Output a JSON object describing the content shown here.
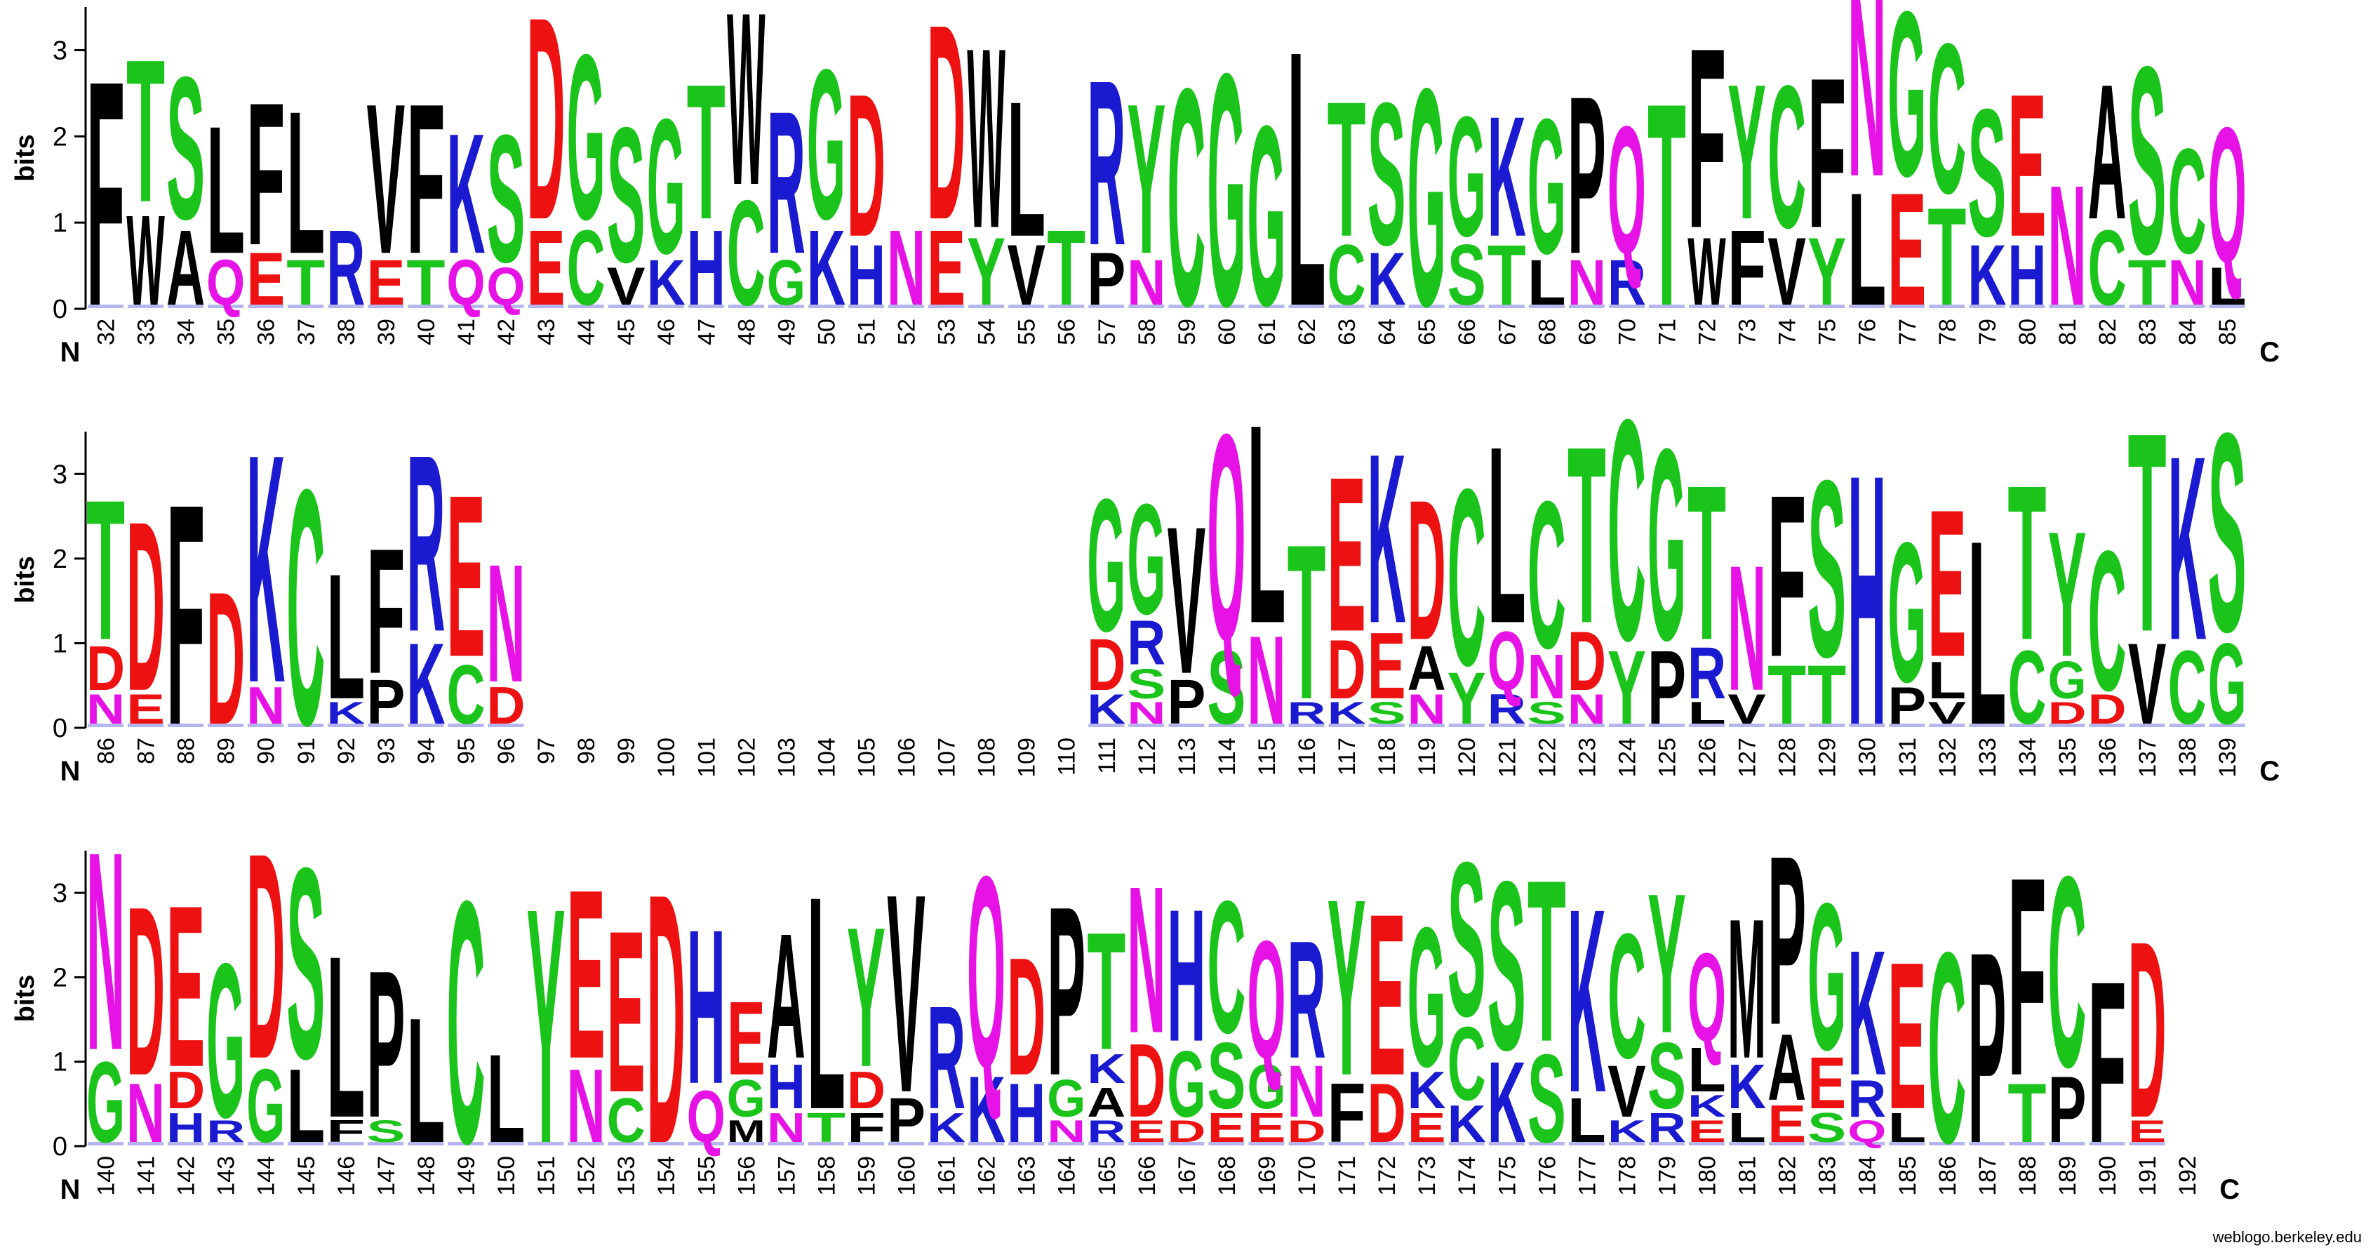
{
  "ylabel": "bits",
  "n_label": "N",
  "c_label": "C",
  "credit": "weblogo.berkeley.edu",
  "y_ticks": [
    "0",
    "1",
    "2",
    "3"
  ],
  "y_max": 3.5,
  "colors": {
    "hydrophobic": "#000000",
    "polar": "#1bc41b",
    "basic": "#1a1ad0",
    "acidic": "#ee1111",
    "amide": "#e612e6"
  },
  "rows": [
    {
      "start": 32,
      "end": 85,
      "columns": {
        "32": "F",
        "33": "TW",
        "34": "SA",
        "35": "LQ",
        "36": "FE",
        "37": "LT",
        "38": "R",
        "39": "VE",
        "40": "FT",
        "41": "KQ",
        "42": "SQ",
        "43": "DE",
        "44": "GC",
        "45": "SV",
        "46": "GK",
        "47": "TH",
        "48": "WC",
        "49": "RG",
        "50": "GK",
        "51": "DH",
        "52": "N",
        "53": "DE",
        "54": "WY",
        "55": "LV",
        "56": "T",
        "57": "RP",
        "58": "YN",
        "59": "C",
        "60": "G",
        "61": "G",
        "62": "L",
        "63": "TC",
        "64": "SK",
        "65": "G",
        "66": "GS",
        "67": "KT",
        "68": "GL",
        "69": "PN",
        "70": "QR",
        "71": "T",
        "72": "FW",
        "73": "YF",
        "74": "CV",
        "75": "FY",
        "76": "NL",
        "77": "GE",
        "78": "CT",
        "79": "SK",
        "80": "EH",
        "81": "N",
        "82": "AC",
        "83": "ST",
        "84": "CN",
        "85": "QL"
      }
    },
    {
      "start": 86,
      "end": 139,
      "columns": {
        "86": "TDN",
        "87": "DE",
        "88": "F",
        "89": "D",
        "90": "KN",
        "91": "C",
        "92": "LK",
        "93": "FP",
        "94": "RK",
        "95": "EC",
        "96": "ND",
        "111": "GDK",
        "112": "GRSN",
        "113": "VP",
        "114": "QS",
        "115": "LN",
        "116": "TR",
        "117": "EDK",
        "118": "KES",
        "119": "DAN",
        "120": "CY",
        "121": "LQR",
        "122": "CNS",
        "123": "TDN",
        "124": "CY",
        "125": "GP",
        "126": "TRL",
        "127": "NV",
        "128": "FT",
        "129": "ST",
        "130": "H",
        "131": "GP",
        "132": "ELV",
        "133": "L",
        "134": "TC",
        "135": "YGD",
        "136": "CD",
        "137": "TV",
        "138": "KC",
        "139": "SG"
      }
    },
    {
      "start": 140,
      "end": 192,
      "columns": {
        "140": "NG",
        "141": "DN",
        "142": "EDH",
        "143": "GR",
        "144": "DG",
        "145": "SL",
        "146": "LF",
        "147": "PS",
        "148": "L",
        "149": "C",
        "150": "L",
        "151": "Y",
        "152": "EN",
        "153": "EC",
        "154": "D",
        "155": "HQ",
        "156": "EGM",
        "157": "AHN",
        "158": "LT",
        "159": "YDF",
        "160": "VP",
        "161": "RK",
        "162": "QK",
        "163": "DH",
        "164": "PGN",
        "165": "TAKR",
        "166": "NDE",
        "167": "HGD",
        "168": "CSE",
        "169": "QGE",
        "170": "RND",
        "171": "YF",
        "172": "ED",
        "173": "GKE",
        "174": "SCK",
        "175": "SK",
        "176": "TS",
        "177": "KL",
        "178": "CVK",
        "179": "YSR",
        "180": "QLEK",
        "181": "MKL",
        "182": "PAE",
        "183": "GES",
        "184": "KRQ",
        "185": "EL",
        "186": "C",
        "187": "P",
        "188": "FT",
        "189": "CP",
        "190": "F",
        "191": "DE"
      }
    }
  ],
  "_heights": {
    "32": [
      3.0
    ],
    "33": [
      1.9,
      1.2
    ],
    "34": [
      1.9,
      1.0
    ],
    "35": [
      1.7,
      0.6
    ],
    "36": [
      1.9,
      0.7
    ],
    "37": [
      1.9,
      0.6
    ],
    "38": [
      1.0
    ],
    "39": [
      2.0,
      0.6
    ],
    "40": [
      2.0,
      0.6
    ],
    "41": [
      1.6,
      0.6
    ],
    "42": [
      1.7,
      0.5
    ],
    "43": [
      2.7,
      1.0
    ],
    "44": [
      2.2,
      1.0
    ],
    "45": [
      1.8,
      0.5
    ],
    "46": [
      1.8,
      0.6
    ],
    "47": [
      1.8,
      1.0
    ],
    "48": [
      2.3,
      1.4
    ],
    "49": [
      1.9,
      0.6
    ],
    "50": [
      2.0,
      1.0
    ],
    "51": [
      1.9,
      0.8
    ],
    "52": [
      1.0
    ],
    "53": [
      2.6,
      1.0
    ],
    "54": [
      2.4,
      0.9
    ],
    "55": [
      1.8,
      0.8
    ],
    "56": [
      1.0
    ],
    "57": [
      2.2,
      0.7
    ],
    "58": [
      2.0,
      0.6
    ],
    "59": [
      2.9
    ],
    "60": [
      3.1
    ],
    "61": [
      2.4
    ],
    "62": [
      3.4
    ],
    "63": [
      1.8,
      0.8
    ],
    "64": [
      1.9,
      0.7
    ],
    "65": [
      2.9
    ],
    "66": [
      1.6,
      0.8
    ],
    "67": [
      1.6,
      0.8
    ],
    "68": [
      1.8,
      0.6
    ],
    "69": [
      2.1,
      0.6
    ],
    "70": [
      1.7,
      0.6
    ],
    "71": [
      2.7
    ],
    "72": [
      2.4,
      0.9
    ],
    "73": [
      1.8,
      1.0
    ],
    "74": [
      1.9,
      0.9
    ],
    "75": [
      2.0,
      0.9
    ],
    "76": [
      2.4,
      1.5
    ],
    "77": [
      2.2,
      1.5
    ],
    "78": [
      2.0,
      1.3
    ],
    "79": [
      1.7,
      0.8
    ],
    "80": [
      1.9,
      0.8
    ],
    "81": [
      1.6
    ],
    "82": [
      1.8,
      1.0
    ],
    "83": [
      2.5,
      0.6
    ],
    "84": [
      1.4,
      0.6
    ],
    "85": [
      1.8,
      0.5
    ],
    "86": [
      1.9,
      0.6,
      0.4
    ],
    "87": [
      2.3,
      0.4
    ],
    "88": [
      3.0
    ],
    "89": [
      1.8
    ],
    "90": [
      3.1,
      0.5
    ],
    "91": [
      3.2
    ],
    "92": [
      1.7,
      0.3
    ],
    "93": [
      1.7,
      0.6
    ],
    "94": [
      2.4,
      1.1
    ],
    "95": [
      2.2,
      0.8
    ],
    "96": [
      1.6,
      0.5
    ],
    "111": [
      1.8,
      0.7,
      0.4
    ],
    "112": [
      1.5,
      0.6,
      0.4,
      0.3
    ],
    "113": [
      2.0,
      0.6
    ],
    "114": [
      2.8,
      1.0
    ],
    "115": [
      2.7,
      1.2
    ],
    "116": [
      2.1,
      0.3
    ],
    "117": [
      2.1,
      0.8,
      0.3
    ],
    "118": [
      2.3,
      0.9,
      0.3
    ],
    "119": [
      1.9,
      0.6,
      0.4
    ],
    "120": [
      2.4,
      0.7
    ],
    "121": [
      2.4,
      0.8,
      0.4
    ],
    "122": [
      2.0,
      0.6,
      0.3
    ],
    "123": [
      2.4,
      0.8,
      0.4
    ],
    "124": [
      3.0,
      1.0
    ],
    "125": [
      2.6,
      1.0
    ],
    "126": [
      2.1,
      0.7,
      0.3
    ],
    "127": [
      1.7,
      0.4
    ],
    "128": [
      2.2,
      0.8
    ],
    "129": [
      2.4,
      0.8
    ],
    "130": [
      3.4
    ],
    "131": [
      1.9,
      0.5
    ],
    "132": [
      2.0,
      0.5,
      0.3
    ],
    "133": [
      2.5
    ],
    "134": [
      2.1,
      1.0
    ],
    "135": [
      1.7,
      0.5,
      0.3
    ],
    "136": [
      1.9,
      0.4
    ],
    "137": [
      2.7,
      1.1
    ],
    "138": [
      2.5,
      1.0
    ],
    "139": [
      2.7,
      1.1
    ],
    "140": [
      2.7,
      1.1
    ],
    "141": [
      2.3,
      0.8
    ],
    "142": [
      2.2,
      0.5,
      0.4
    ],
    "143": [
      2.1,
      0.3
    ],
    "144": [
      2.8,
      1.0
    ],
    "145": [
      2.6,
      1.0
    ],
    "146": [
      2.2,
      0.3
    ],
    "147": [
      2.0,
      0.3
    ],
    "148": [
      1.7
    ],
    "149": [
      3.3
    ],
    "150": [
      1.2
    ],
    "151": [
      3.2
    ],
    "152": [
      2.3,
      1.0
    ],
    "153": [
      2.2,
      0.6
    ],
    "154": [
      3.4
    ],
    "155": [
      2.1,
      0.7
    ],
    "156": [
      1.0,
      0.5,
      0.3
    ],
    "157": [
      1.7,
      0.6,
      0.4
    ],
    "158": [
      2.9,
      0.4
    ],
    "159": [
      1.9,
      0.5,
      0.4
    ],
    "160": [
      2.7,
      0.6
    ],
    "161": [
      1.4,
      0.4
    ],
    "162": [
      2.6,
      0.9
    ],
    "163": [
      1.6,
      0.8
    ],
    "164": [
      2.3,
      0.5,
      0.3
    ],
    "165": [
      1.6,
      0.4,
      0.4,
      0.3
    ],
    "166": [
      2.0,
      1.0,
      0.3
    ],
    "167": [
      1.8,
      0.9,
      0.3
    ],
    "168": [
      1.8,
      0.9,
      0.4
    ],
    "169": [
      1.6,
      0.6,
      0.4
    ],
    "170": [
      1.6,
      0.7,
      0.3
    ],
    "171": [
      2.4,
      0.8
    ],
    "172": [
      2.2,
      0.8
    ],
    "173": [
      1.9,
      0.5,
      0.4
    ],
    "174": [
      2.1,
      1.0,
      0.5
    ],
    "175": [
      2.3,
      1.1
    ],
    "176": [
      2.2,
      1.2
    ],
    "177": [
      2.5,
      0.6
    ],
    "178": [
      1.7,
      0.7,
      0.3
    ],
    "179": [
      1.9,
      0.9,
      0.4
    ],
    "180": [
      1.2,
      0.6,
      0.3,
      0.3
    ],
    "181": [
      1.9,
      0.6,
      0.4
    ],
    "182": [
      2.3,
      0.9,
      0.5
    ],
    "183": [
      2.0,
      0.7,
      0.4
    ],
    "184": [
      1.7,
      0.5,
      0.3
    ],
    "185": [
      2.0,
      0.4
    ],
    "186": [
      2.6
    ],
    "187": [
      2.6
    ],
    "188": [
      2.7,
      0.8
    ],
    "189": [
      2.6,
      0.9
    ],
    "190": [
      2.2
    ],
    "191": [
      2.4,
      0.3
    ]
  }
}
